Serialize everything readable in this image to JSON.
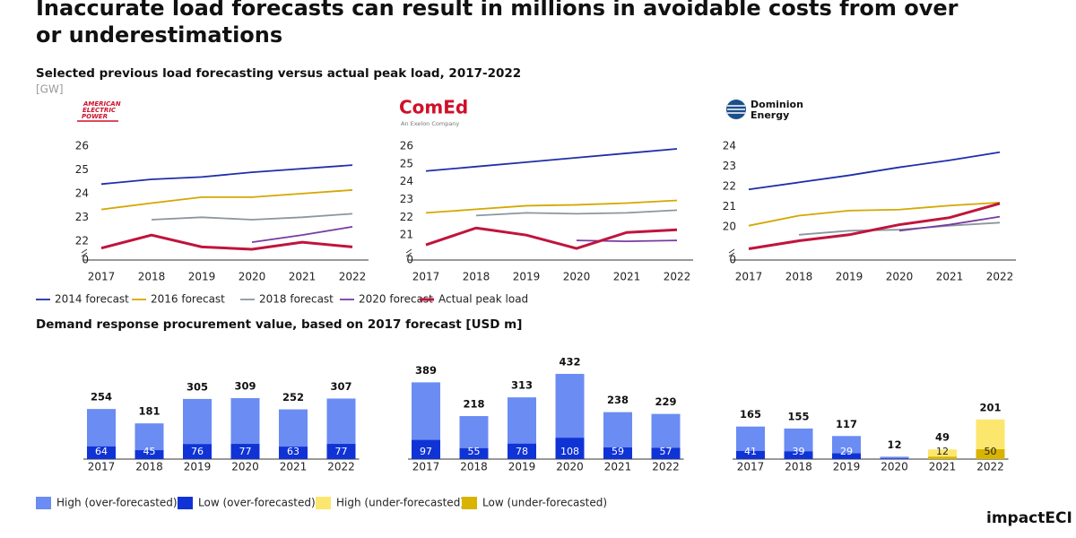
{
  "title": "Inaccurate load forecasts can result in millions in avoidable costs from over or underestimations",
  "section_titles": [
    "Selected previous load forecasting versus actual peak load, 2017-2022",
    "Demand response procurement value, based on 2017 forecast [USD m]"
  ],
  "unit": "[GW]",
  "logos": [
    [
      "AMERICAN",
      "ELECTRIC",
      "POWER"
    ],
    [
      "ComEd",
      "An Exelon Company"
    ],
    [
      "Dominion",
      "Energy"
    ]
  ],
  "brand": "impactECI",
  "chart_data": [
    {
      "type": "line",
      "categories": [
        "2017",
        "2018",
        "2019",
        "2020",
        "2021",
        "2022"
      ],
      "ylim": [
        0,
        26
      ],
      "ybreak": [
        0,
        21.5
      ],
      "yticks": [
        0,
        22,
        23,
        24,
        25,
        26
      ],
      "series": [
        {
          "name": "2014 forecast",
          "color": "#1f2ea8",
          "width": 1.8,
          "values": [
            24.4,
            24.6,
            24.7,
            24.9,
            25.05,
            25.2
          ]
        },
        {
          "name": "2016 forecast",
          "color": "#d4a800",
          "width": 1.8,
          "values": [
            23.33,
            23.6,
            23.85,
            23.85,
            24.0,
            24.15
          ]
        },
        {
          "name": "2018 forecast",
          "color": "#8c96a0",
          "width": 1.8,
          "values": [
            null,
            22.9,
            23.0,
            22.9,
            23.0,
            23.15
          ]
        },
        {
          "name": "2020 forecast",
          "color": "#7a3aa0",
          "width": 1.8,
          "values": [
            null,
            null,
            null,
            21.95,
            22.25,
            22.6
          ]
        },
        {
          "name": "Actual peak load",
          "color": "#c0143c",
          "width": 3,
          "values": [
            21.7,
            22.25,
            21.75,
            21.65,
            21.95,
            21.75
          ]
        }
      ]
    },
    {
      "type": "line",
      "categories": [
        "2017",
        "2018",
        "2019",
        "2020",
        "2021",
        "2022"
      ],
      "ylim": [
        0,
        26
      ],
      "ybreak": [
        0,
        20
      ],
      "yticks": [
        0,
        21,
        22,
        23,
        24,
        25,
        26
      ],
      "series": [
        {
          "name": "2014 forecast",
          "color": "#1f2ea8",
          "width": 1.8,
          "values": [
            24.6,
            24.85,
            25.1,
            25.35,
            25.6,
            25.85
          ]
        },
        {
          "name": "2016 forecast",
          "color": "#d4a800",
          "width": 1.8,
          "values": [
            22.25,
            22.45,
            22.65,
            22.7,
            22.8,
            22.95
          ]
        },
        {
          "name": "2018 forecast",
          "color": "#8c96a0",
          "width": 1.8,
          "values": [
            null,
            22.1,
            22.25,
            22.2,
            22.25,
            22.4
          ]
        },
        {
          "name": "2020 forecast",
          "color": "#7a3aa0",
          "width": 1.8,
          "values": [
            null,
            null,
            null,
            20.7,
            20.65,
            20.7
          ]
        },
        {
          "name": "Actual peak load",
          "color": "#c0143c",
          "width": 3,
          "values": [
            20.45,
            21.4,
            21.0,
            20.25,
            21.15,
            21.3
          ]
        }
      ]
    },
    {
      "type": "line",
      "categories": [
        "2017",
        "2018",
        "2019",
        "2020",
        "2021",
        "2022"
      ],
      "ylim": [
        0,
        24
      ],
      "ybreak": [
        0,
        18.7
      ],
      "yticks": [
        0,
        20,
        21,
        22,
        23,
        24
      ],
      "series": [
        {
          "name": "2014 forecast",
          "color": "#1f2ea8",
          "width": 1.8,
          "values": [
            21.85,
            22.2,
            22.55,
            22.95,
            23.3,
            23.7
          ]
        },
        {
          "name": "2016 forecast",
          "color": "#d4a800",
          "width": 1.8,
          "values": [
            20.05,
            20.55,
            20.8,
            20.85,
            21.05,
            21.2
          ]
        },
        {
          "name": "2018 forecast",
          "color": "#8c96a0",
          "width": 1.8,
          "values": [
            null,
            19.6,
            19.8,
            19.85,
            20.05,
            20.2
          ]
        },
        {
          "name": "2020 forecast",
          "color": "#7a3aa0",
          "width": 1.8,
          "values": [
            null,
            null,
            null,
            19.8,
            20.1,
            20.5
          ]
        },
        {
          "name": "Actual peak load",
          "color": "#c0143c",
          "width": 3,
          "values": [
            18.9,
            19.3,
            19.6,
            20.1,
            20.45,
            21.15
          ]
        }
      ]
    },
    {
      "type": "bar",
      "categories": [
        "2017",
        "2018",
        "2019",
        "2020",
        "2021",
        "2022"
      ],
      "series": [
        {
          "name": "High (over-forecasted)",
          "color": "#6b8cf2",
          "values": [
            254,
            181,
            305,
            309,
            252,
            307
          ]
        },
        {
          "name": "Low (over-forecasted)",
          "color": "#1033d6",
          "values": [
            64,
            45,
            76,
            77,
            63,
            77
          ]
        }
      ]
    },
    {
      "type": "bar",
      "categories": [
        "2017",
        "2018",
        "2019",
        "2020",
        "2021",
        "2022"
      ],
      "series": [
        {
          "name": "High (over-forecasted)",
          "color": "#6b8cf2",
          "values": [
            389,
            218,
            313,
            432,
            238,
            229
          ]
        },
        {
          "name": "Low (over-forecasted)",
          "color": "#1033d6",
          "values": [
            97,
            55,
            78,
            108,
            59,
            57
          ]
        }
      ]
    },
    {
      "type": "bar",
      "categories": [
        "2017",
        "2018",
        "2019",
        "2020",
        "2021",
        "2022"
      ],
      "series": [
        {
          "name": "High (over-forecasted)",
          "color": "#6b8cf2",
          "values": [
            165,
            155,
            117,
            12,
            null,
            null
          ]
        },
        {
          "name": "Low (over-forecasted)",
          "color": "#1033d6",
          "values": [
            41,
            39,
            29,
            3,
            null,
            null
          ]
        },
        {
          "name": "High (under-forecasted)",
          "color": "#fde66e",
          "values": [
            null,
            null,
            null,
            null,
            49,
            201
          ]
        },
        {
          "name": "Low (under-forecasted)",
          "color": "#d8b400",
          "values": [
            null,
            null,
            null,
            null,
            12,
            50
          ]
        }
      ]
    }
  ]
}
